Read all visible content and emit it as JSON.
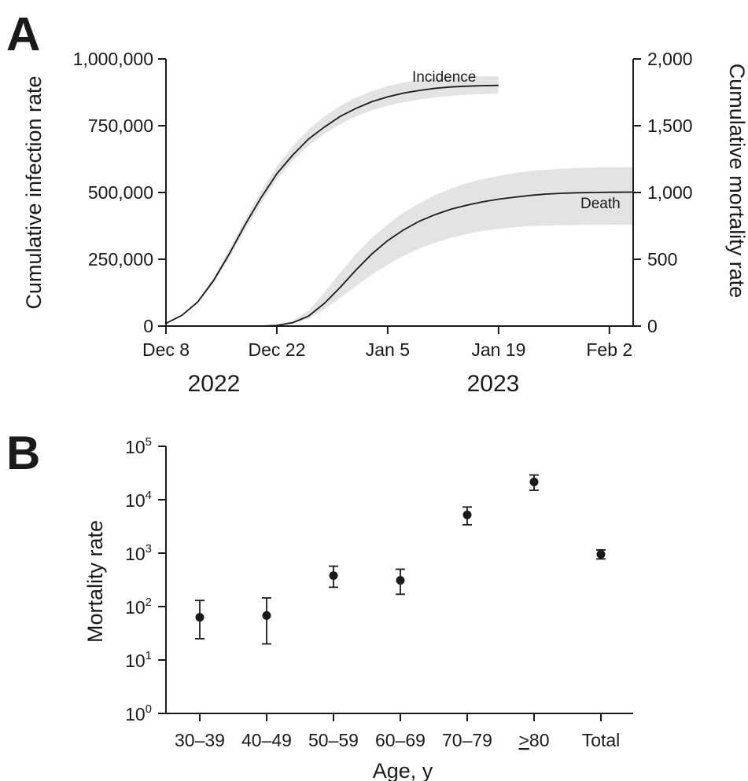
{
  "chart_data": [
    {
      "panel": "A",
      "type": "line",
      "x_tick_labels": [
        "Dec 8",
        "Dec 22",
        "Jan 5",
        "Jan 19",
        "Feb 2"
      ],
      "x_year_labels": [
        "2022",
        "2023"
      ],
      "xlim": [
        "2022-12-08",
        "2023-02-05"
      ],
      "ylabel_left": "Cumulative infection rate",
      "ylabel_right": "Cumulative mortality rate",
      "ylim_left": [
        0,
        1000000
      ],
      "ylim_right": [
        0,
        2000
      ],
      "yticks_left": [
        "0",
        "250,000",
        "500,000",
        "750,000",
        "1,000,000"
      ],
      "yticks_right": [
        "0",
        "500",
        "1,000",
        "1,500",
        "2,000"
      ],
      "annotations": {
        "incidence": "Incidence",
        "death": "Death"
      },
      "series": [
        {
          "name": "Incidence",
          "axis": "left",
          "x": [
            "2022-12-08",
            "2022-12-10",
            "2022-12-12",
            "2022-12-14",
            "2022-12-16",
            "2022-12-18",
            "2022-12-20",
            "2022-12-22",
            "2022-12-24",
            "2022-12-26",
            "2022-12-28",
            "2022-12-30",
            "2023-01-01",
            "2023-01-03",
            "2023-01-05",
            "2023-01-07",
            "2023-01-09",
            "2023-01-11",
            "2023-01-13",
            "2023-01-15",
            "2023-01-17",
            "2023-01-19"
          ],
          "values": [
            10000,
            40000,
            90000,
            170000,
            270000,
            380000,
            480000,
            570000,
            640000,
            700000,
            745000,
            785000,
            815000,
            840000,
            858000,
            872000,
            882000,
            890000,
            895000,
            898000,
            900000,
            901000
          ],
          "lower": [
            10000,
            38000,
            85000,
            160000,
            255000,
            360000,
            458000,
            548000,
            618000,
            675000,
            720000,
            755000,
            785000,
            808000,
            825000,
            838000,
            848000,
            856000,
            862000,
            866000,
            868000,
            870000
          ],
          "upper": [
            10000,
            42000,
            95000,
            182000,
            288000,
            400000,
            505000,
            598000,
            672000,
            735000,
            785000,
            825000,
            855000,
            880000,
            898000,
            912000,
            922000,
            928000,
            932000,
            934000,
            935000,
            935000
          ]
        },
        {
          "name": "Death",
          "axis": "right",
          "x": [
            "2022-12-20",
            "2022-12-22",
            "2022-12-24",
            "2022-12-26",
            "2022-12-28",
            "2022-12-30",
            "2023-01-01",
            "2023-01-03",
            "2023-01-05",
            "2023-01-07",
            "2023-01-09",
            "2023-01-11",
            "2023-01-13",
            "2023-01-15",
            "2023-01-17",
            "2023-01-19",
            "2023-01-21",
            "2023-01-23",
            "2023-01-25",
            "2023-01-27",
            "2023-01-29",
            "2023-01-31",
            "2023-02-02",
            "2023-02-05"
          ],
          "values": [
            0,
            5,
            25,
            75,
            170,
            290,
            420,
            540,
            640,
            720,
            785,
            835,
            875,
            905,
            930,
            950,
            965,
            978,
            988,
            994,
            998,
            1000,
            1002,
            1003
          ],
          "lower": [
            0,
            4,
            18,
            55,
            125,
            210,
            300,
            385,
            460,
            525,
            580,
            625,
            660,
            690,
            712,
            728,
            740,
            748,
            752,
            755,
            757,
            758,
            759,
            760
          ],
          "upper": [
            0,
            7,
            40,
            115,
            250,
            400,
            540,
            660,
            760,
            850,
            920,
            980,
            1030,
            1070,
            1100,
            1125,
            1145,
            1160,
            1170,
            1178,
            1183,
            1187,
            1189,
            1190
          ]
        }
      ]
    },
    {
      "panel": "B",
      "type": "scatter",
      "categories": [
        "30–39",
        "40–49",
        "50–59",
        "60–69",
        "70–79",
        "≥80",
        "Total"
      ],
      "category_labels": [
        "30–39",
        "40–49",
        "50–59",
        "60–69",
        "70–79",
        "80",
        "Total"
      ],
      "underlined_symbol": ">",
      "ylabel": "Mortality rate",
      "xlabel": "Age, y",
      "yscale": "log",
      "ylim": [
        1,
        100000
      ],
      "ytick_base": "10",
      "ytick_exponents": [
        "0",
        "1",
        "2",
        "3",
        "4",
        "5"
      ],
      "values": [
        63,
        68,
        380,
        310,
        5200,
        21500,
        950
      ],
      "lower": [
        25,
        20,
        230,
        170,
        3400,
        15000,
        780
      ],
      "upper": [
        130,
        145,
        570,
        500,
        7300,
        29000,
        1150
      ]
    }
  ],
  "panel_labels": {
    "a": "A",
    "b": "B"
  }
}
